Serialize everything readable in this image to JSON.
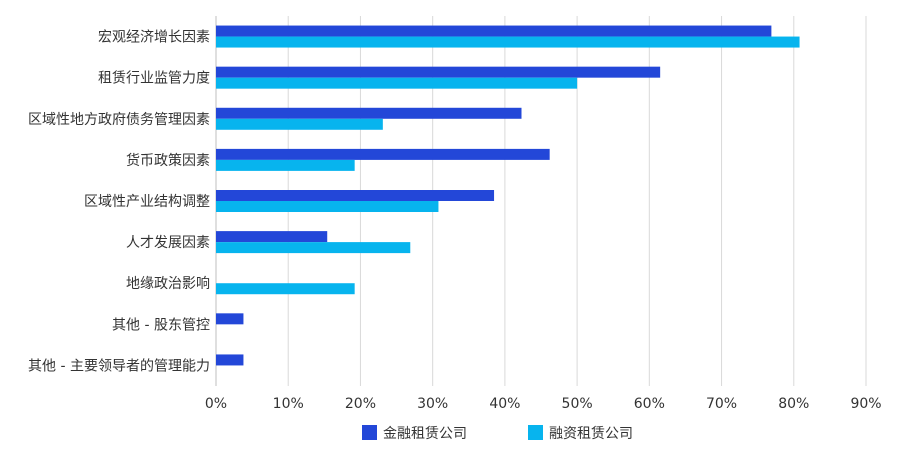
{
  "chart_data": {
    "type": "bar",
    "orientation": "horizontal",
    "title": "",
    "xlabel": "",
    "ylabel": "",
    "xlim": [
      0,
      90
    ],
    "ticks": [
      "0%",
      "10%",
      "20%",
      "30%",
      "40%",
      "50%",
      "60%",
      "70%",
      "80%",
      "90%"
    ],
    "tick_values": [
      0,
      10,
      20,
      30,
      40,
      50,
      60,
      70,
      80,
      90
    ],
    "grid": true,
    "legend_position": "bottom",
    "categories": [
      "宏观经济增长因素",
      "租赁行业监管力度",
      "区域性地方政府债务管理因素",
      "货币政策因素",
      "区域性产业结构调整",
      "人才发展因素",
      "地缘政治影响",
      "其他 - 股东管控",
      "其他 - 主要领导者的管理能力"
    ],
    "series": [
      {
        "name": "金融租赁公司",
        "color": "#2347d8",
        "values": [
          76.9,
          61.5,
          42.3,
          46.2,
          38.5,
          15.4,
          0,
          3.8,
          3.8
        ]
      },
      {
        "name": "融资租赁公司",
        "color": "#07b4ee",
        "values": [
          80.8,
          50.0,
          23.1,
          19.2,
          30.8,
          26.9,
          19.2,
          0,
          0
        ]
      }
    ]
  }
}
